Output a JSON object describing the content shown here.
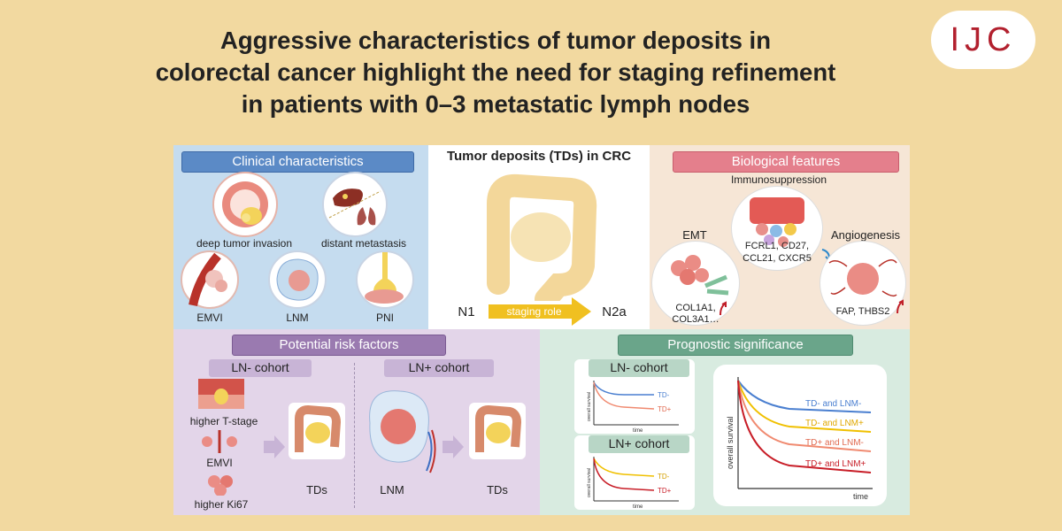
{
  "header": {
    "title_line1": "Aggressive characteristics of tumor deposits in",
    "title_line2": "colorectal cancer highlight the need for staging refinement",
    "title_line3": "in patients with 0–3 metastatic lymph nodes",
    "journal": "IJC"
  },
  "clinical": {
    "heading": "Clinical characteristics",
    "items": [
      "deep tumor invasion",
      "distant metastasis",
      "EMVI",
      "LNM",
      "PNI"
    ]
  },
  "center": {
    "heading": "Tumor deposits (TDs) in CRC",
    "from": "N1",
    "arrow_label": "staging role",
    "to": "N2a"
  },
  "biological": {
    "heading": "Biological features",
    "immuno": "Immunosuppression",
    "immuno_genes_1": "FCRL1, CD27,",
    "immuno_genes_2": "CCL21, CXCR5",
    "emt": "EMT",
    "emt_genes_1": "COL1A1,",
    "emt_genes_2": "COL3A1…",
    "angio": "Angiogenesis",
    "angio_genes": "FAP, THBS2"
  },
  "risk": {
    "heading": "Potential risk factors",
    "ln_neg": "LN- cohort",
    "ln_pos": "LN+ cohort",
    "factors": [
      "higher T-stage",
      "EMVI",
      "higher Ki67"
    ],
    "tds_left": "TDs",
    "lnm": "LNM",
    "tds_right": "TDs"
  },
  "prognostic": {
    "heading": "Prognostic significance",
    "ln_neg": "LN- cohort",
    "ln_pos": "LN+ cohort",
    "small_ylabel": "overall survival",
    "small_xlabel": "time",
    "td_minus": "TD-",
    "td_plus": "TD+",
    "big_ylabel": "overall survival",
    "big_xlabel": "time",
    "curves": [
      "TD- and LNM-",
      "TD- and LNM+",
      "TD+ and LNM-",
      "TD+ and LNM+"
    ]
  },
  "colors": {
    "background": "#f2d9a0",
    "curve_1": "#4a7fd0",
    "curve_2": "#f0c000",
    "curve_3": "#f08a70",
    "curve_4": "#c81e28"
  }
}
